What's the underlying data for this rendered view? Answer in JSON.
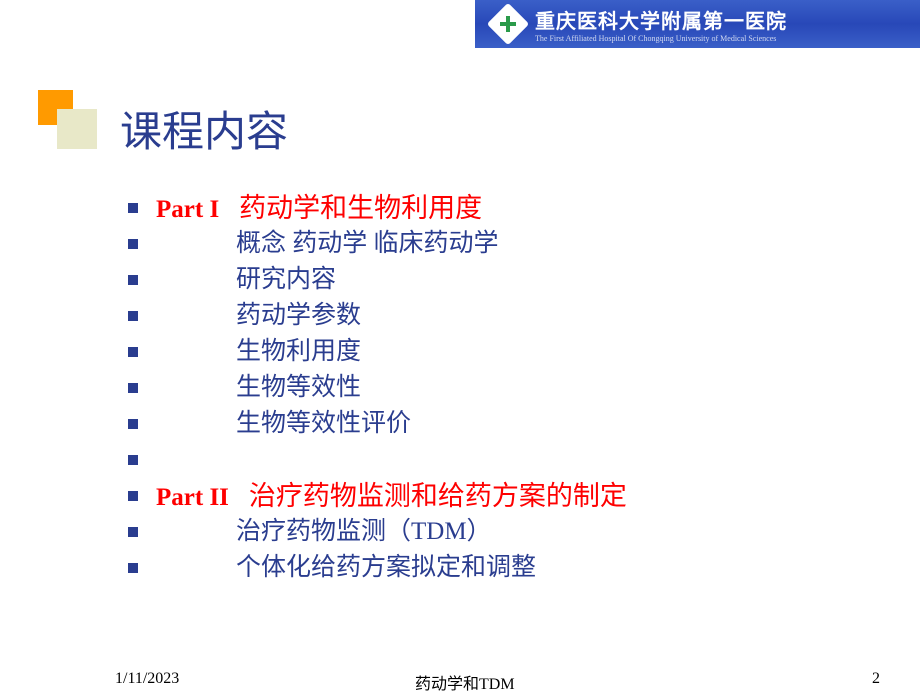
{
  "banner": {
    "title": "重庆医科大学附属第一医院",
    "subtitle": "The First Affiliated Hospital Of Chongqing University of Medical Sciences",
    "bg_gradient": [
      "#3a5fc8",
      "#2848b8",
      "#3a5fc8"
    ],
    "logo_bg": "#ffffff",
    "logo_cross": "#2a9a4a"
  },
  "decoration": {
    "box1_color": "#ff9a00",
    "box2_color": "#e8e8c8"
  },
  "title": {
    "text": "课程内容",
    "color": "#2a3d8f",
    "fontsize": 42
  },
  "bullet_color": "#2a3d8f",
  "items": [
    {
      "type": "part",
      "label": "Part I",
      "title": "药动学和生物利用度"
    },
    {
      "type": "sub",
      "text": "概念  药动学 临床药动学"
    },
    {
      "type": "sub",
      "text": "研究内容"
    },
    {
      "type": "sub",
      "text": "药动学参数"
    },
    {
      "type": "sub",
      "text": "生物利用度"
    },
    {
      "type": "sub",
      "text": "生物等效性"
    },
    {
      "type": "sub",
      "text": "生物等效性评价"
    },
    {
      "type": "empty"
    },
    {
      "type": "part",
      "label": "Part II",
      "title": "治疗药物监测和给药方案的制定"
    },
    {
      "type": "sub",
      "text": "治疗药物监测（TDM）"
    },
    {
      "type": "sub",
      "text": "个体化给药方案拟定和调整"
    }
  ],
  "colors": {
    "part_color": "#fe0000",
    "sub_color": "#2a3d8f"
  },
  "footer": {
    "date": "1/11/2023",
    "title": "药动学和TDM",
    "page": "2"
  }
}
